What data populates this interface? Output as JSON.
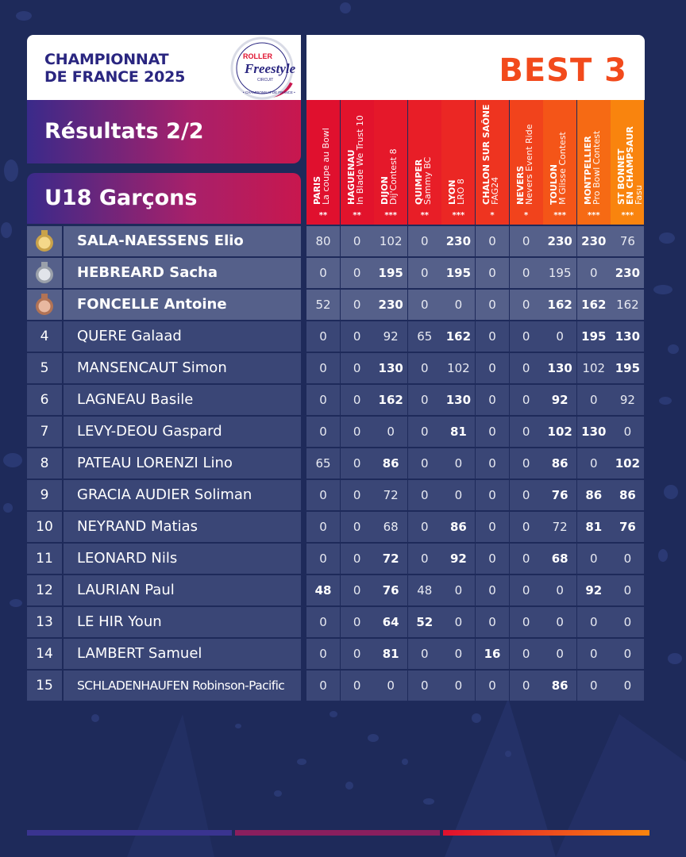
{
  "header": {
    "title_line1": "CHAMPIONNAT",
    "title_line2": "DE FRANCE 2025",
    "logo_text": "ROLLER Freestyle CIRCUIT • CHAMPIONNAT DE FRANCE •",
    "badge": "BEST 3"
  },
  "section": {
    "results": "Résultats 2/2",
    "category": "U18 Garçons"
  },
  "colors": {
    "background": "#1e2a5a",
    "accent_orange": "#f24a1c",
    "title_blue": "#2a2680",
    "row": "#3a4676"
  },
  "columns": [
    {
      "city": "PARIS",
      "event": "La coupe au Bowl",
      "stars": "**",
      "color": "#e0102e"
    },
    {
      "city": "HAGUENAU",
      "event": "In Blade We Trust 10",
      "stars": "**",
      "color": "#e2132c"
    },
    {
      "city": "DIJON",
      "event": "Dij'Contest 8",
      "stars": "***",
      "color": "#e5182a"
    },
    {
      "city": "QUIMPER",
      "event": "Sammy BC",
      "stars": "**",
      "color": "#e81e27"
    },
    {
      "city": "LYON",
      "event": "LRO 8",
      "stars": "***",
      "color": "#eb2724"
    },
    {
      "city": "CHALON SUR SAÔNE",
      "event": "FAG24",
      "stars": "*",
      "color": "#ee3420"
    },
    {
      "city": "NEVERS",
      "event": "Nevers Event Ride",
      "stars": "*",
      "color": "#f1431c"
    },
    {
      "city": "TOULON",
      "event": "M Glisse Contest",
      "stars": "***",
      "color": "#f45518"
    },
    {
      "city": "MONTPELLIER",
      "event": "Pro Bowl Contest",
      "stars": "***",
      "color": "#f66a14"
    },
    {
      "city": "ST BONNET EN CHAMPSAUR",
      "event": "Fasu",
      "stars": "***",
      "color": "#f9840e"
    }
  ],
  "rows": [
    {
      "rank": "",
      "medal": "gold",
      "name": "SALA-NAESSENS Elio",
      "values": [
        "80",
        "0",
        "102",
        "0",
        "230",
        "0",
        "0",
        "230",
        "230",
        "76"
      ],
      "bold": [
        4,
        7,
        8
      ]
    },
    {
      "rank": "",
      "medal": "silver",
      "name": "HEBREARD Sacha",
      "values": [
        "0",
        "0",
        "195",
        "0",
        "195",
        "0",
        "0",
        "195",
        "0",
        "230"
      ],
      "bold": [
        2,
        4,
        9
      ]
    },
    {
      "rank": "",
      "medal": "bronze",
      "name": "FONCELLE Antoine",
      "values": [
        "52",
        "0",
        "230",
        "0",
        "0",
        "0",
        "0",
        "162",
        "162",
        "162"
      ],
      "bold": [
        2,
        7,
        8
      ]
    },
    {
      "rank": "4",
      "name": "QUERE Galaad",
      "values": [
        "0",
        "0",
        "92",
        "65",
        "162",
        "0",
        "0",
        "0",
        "195",
        "130"
      ],
      "bold": [
        4,
        8,
        9
      ]
    },
    {
      "rank": "5",
      "name": "MANSENCAUT Simon",
      "values": [
        "0",
        "0",
        "130",
        "0",
        "102",
        "0",
        "0",
        "130",
        "102",
        "195"
      ],
      "bold": [
        2,
        7,
        9
      ]
    },
    {
      "rank": "6",
      "name": "LAGNEAU Basile",
      "values": [
        "0",
        "0",
        "162",
        "0",
        "130",
        "0",
        "0",
        "92",
        "0",
        "92"
      ],
      "bold": [
        2,
        4,
        7
      ]
    },
    {
      "rank": "7",
      "name": "LEVY-DEOU Gaspard",
      "values": [
        "0",
        "0",
        "0",
        "0",
        "81",
        "0",
        "0",
        "102",
        "130",
        "0"
      ],
      "bold": [
        4,
        7,
        8
      ]
    },
    {
      "rank": "8",
      "name": "PATEAU LORENZI Lino",
      "values": [
        "65",
        "0",
        "86",
        "0",
        "0",
        "0",
        "0",
        "86",
        "0",
        "102"
      ],
      "bold": [
        2,
        7,
        9
      ]
    },
    {
      "rank": "9",
      "name": "GRACIA AUDIER Soliman",
      "values": [
        "0",
        "0",
        "72",
        "0",
        "0",
        "0",
        "0",
        "76",
        "86",
        "86"
      ],
      "bold": [
        7,
        8,
        9
      ]
    },
    {
      "rank": "10",
      "name": "NEYRAND Matias",
      "values": [
        "0",
        "0",
        "68",
        "0",
        "86",
        "0",
        "0",
        "72",
        "81",
        "76"
      ],
      "bold": [
        4,
        8,
        9
      ]
    },
    {
      "rank": "11",
      "name": "LEONARD Nils",
      "values": [
        "0",
        "0",
        "72",
        "0",
        "92",
        "0",
        "0",
        "68",
        "0",
        "0"
      ],
      "bold": [
        2,
        4,
        7
      ]
    },
    {
      "rank": "12",
      "name": "LAURIAN Paul",
      "values": [
        "48",
        "0",
        "76",
        "48",
        "0",
        "0",
        "0",
        "0",
        "92",
        "0"
      ],
      "bold": [
        0,
        2,
        8
      ]
    },
    {
      "rank": "13",
      "name": "LE HIR Youn",
      "values": [
        "0",
        "0",
        "64",
        "52",
        "0",
        "0",
        "0",
        "0",
        "0",
        "0"
      ],
      "bold": [
        2,
        3
      ]
    },
    {
      "rank": "14",
      "name": "LAMBERT Samuel",
      "values": [
        "0",
        "0",
        "81",
        "0",
        "0",
        "16",
        "0",
        "0",
        "0",
        "0"
      ],
      "bold": [
        2,
        5
      ]
    },
    {
      "rank": "15",
      "name": "SCHLADENHAUFEN Robinson-Pacific",
      "values": [
        "0",
        "0",
        "0",
        "0",
        "0",
        "0",
        "0",
        "86",
        "0",
        "0"
      ],
      "bold": [
        7
      ]
    }
  ]
}
